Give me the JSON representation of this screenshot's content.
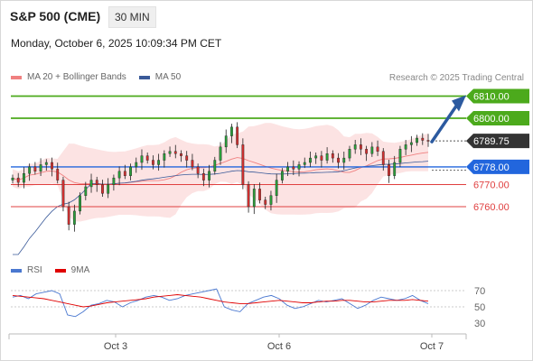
{
  "header": {
    "title": "S&P 500 (CME)",
    "timeframe": "30 MIN",
    "datetime": "Monday, October 6, 2025 10:09:34 PM CET"
  },
  "legend": {
    "items": [
      {
        "label": "MA 20 + Bollinger Bands",
        "color": "#f08080"
      },
      {
        "label": "MA 50",
        "color": "#3a5a99"
      }
    ],
    "credit": "Research © 2025 Trading Central"
  },
  "rsi_legend": {
    "items": [
      {
        "label": "RSI",
        "color": "#4a78d0"
      },
      {
        "label": "9MA",
        "color": "#e00000"
      }
    ]
  },
  "chart_data": {
    "type": "candlestick",
    "x_ticks": [
      "Oct 3",
      "Oct 6",
      "Oct 7"
    ],
    "price_levels": [
      {
        "value": 6810.0,
        "label": "6810.00",
        "kind": "resistance",
        "color": "#4caa1c"
      },
      {
        "value": 6800.0,
        "label": "6800.00",
        "kind": "resistance",
        "color": "#4caa1c"
      },
      {
        "value": 6789.75,
        "label": "6789.75",
        "kind": "last",
        "color": "#333333"
      },
      {
        "value": 6778.0,
        "label": "6778.00",
        "kind": "pivot",
        "color": "#2266dd"
      },
      {
        "value": 6770.0,
        "label": "6770.00",
        "kind": "support",
        "color": "#e04040"
      },
      {
        "value": 6760.0,
        "label": "6760.00",
        "kind": "support",
        "color": "#e04040"
      }
    ],
    "close_series": [
      6773,
      6771,
      6775,
      6778,
      6776,
      6779,
      6780,
      6777,
      6772,
      6760,
      6752,
      6758,
      6765,
      6769,
      6772,
      6770,
      6766,
      6770,
      6773,
      6776,
      6774,
      6778,
      6780,
      6783,
      6781,
      6779,
      6781,
      6784,
      6785,
      6784,
      6783,
      6781,
      6778,
      6775,
      6772,
      6776,
      6781,
      6787,
      6792,
      6796,
      6788,
      6770,
      6760,
      6768,
      6763,
      6761,
      6765,
      6772,
      6776,
      6778,
      6777,
      6779,
      6780,
      6782,
      6783,
      6781,
      6784,
      6782,
      6780,
      6782,
      6786,
      6788,
      6786,
      6784,
      6787,
      6785,
      6779,
      6774,
      6780,
      6786,
      6788,
      6789,
      6791,
      6790,
      6789.75
    ],
    "rsi": {
      "levels": [
        70,
        50,
        30
      ],
      "rsi_values": [
        62,
        64,
        60,
        66,
        68,
        70,
        66,
        40,
        38,
        44,
        52,
        54,
        58,
        56,
        50,
        55,
        58,
        62,
        64,
        62,
        58,
        60,
        64,
        66,
        68,
        70,
        72,
        50,
        46,
        44,
        54,
        58,
        62,
        64,
        60,
        52,
        48,
        50,
        54,
        58,
        56,
        58,
        60,
        54,
        48,
        52,
        58,
        62,
        60,
        58,
        60,
        64,
        58,
        54
      ],
      "ma_values": [
        64,
        63,
        62,
        61,
        60,
        58,
        56,
        54,
        52,
        50,
        51,
        53,
        55,
        56,
        57,
        58,
        59,
        60,
        62,
        63,
        64,
        65,
        64,
        63,
        62,
        60,
        58,
        56,
        55,
        54,
        54,
        55,
        56,
        57,
        58,
        57,
        56,
        55,
        55,
        56,
        57,
        57,
        58,
        58,
        57,
        56,
        56,
        57,
        58,
        58,
        58,
        59,
        58,
        57
      ]
    }
  }
}
